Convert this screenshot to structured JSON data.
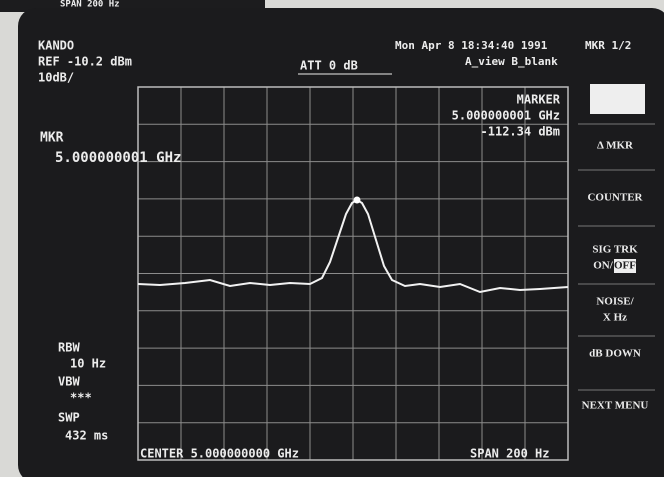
{
  "top_strip": {
    "text": "SPAN 200 Hz"
  },
  "header": {
    "brand": "KANDO",
    "ref": "REF -10.2 dBm",
    "scale": "10dB/",
    "attenuation": "ATT 0 dB",
    "datetime": "Mon Apr  8 18:34:40 1991",
    "view": "A_view B_blank",
    "marker_count": "MKR 1/2"
  },
  "marker_box": {
    "label": "MARKER",
    "frequency": "5.000000001 GHz",
    "level": "-112.34 dBm"
  },
  "mkr_readout": {
    "label": "MKR",
    "frequency": "5.000000001 GHz"
  },
  "settings": [
    {
      "label": "RBW",
      "value": "10 Hz"
    },
    {
      "label": "VBW",
      "value": "***"
    },
    {
      "label": "SWP",
      "value": "432 ms"
    }
  ],
  "footer": {
    "center": "CENTER 5.000000000 GHz",
    "span": "SPAN 200 Hz"
  },
  "softkeys": {
    "delta_marker": "Δ MKR",
    "counter": "COUNTER",
    "sig_trk": "SIG TRK",
    "sig_trk_on": "ON/",
    "sig_trk_off": "OFF",
    "noise": "NOISE/",
    "noise_unit": "X Hz",
    "db_down": "dB DOWN",
    "next_menu": "NEXT MENU"
  }
}
